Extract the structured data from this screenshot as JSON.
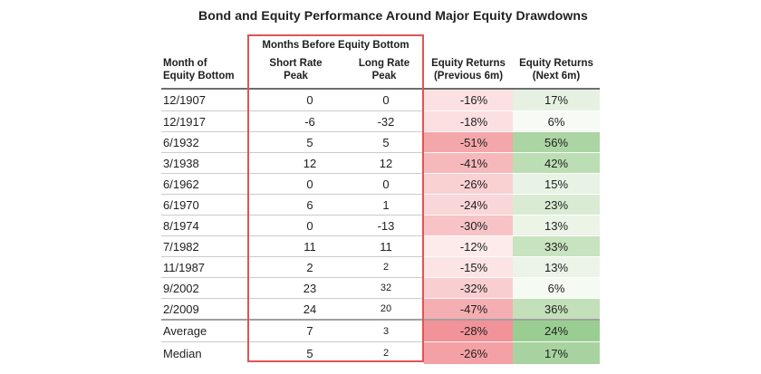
{
  "page": {
    "title": "Bond and Equity Performance Around Major Equity Drawdowns"
  },
  "table": {
    "headers": {
      "group": "Months Before Equity Bottom",
      "month_line1": "Month of",
      "month_line2": "Equity Bottom",
      "short_line1": "Short Rate",
      "short_line2": "Peak",
      "long_line1": "Long Rate",
      "long_line2": "Peak",
      "prev_line1": "Equity Returns",
      "prev_line2": "(Previous 6m)",
      "next_line1": "Equity Returns",
      "next_line2": "(Next 6m)"
    },
    "colors": {
      "box_border": "#e15454",
      "header_rule": "#6e6e6e",
      "row_divider": "#cbcbcb",
      "summary_divider": "#a0a0a0",
      "text": "#1f1f1f",
      "background": "#ffffff"
    },
    "rows": [
      {
        "month": "12/1907",
        "short_rate_peak": "0",
        "long_rate_peak": "0",
        "equity_returns_prev_6m": "-16%",
        "equity_returns_next_6m": "17%",
        "prev_bg": "#fbe1e3",
        "next_bg": "#e6f1e2",
        "long_small": false,
        "summary": false
      },
      {
        "month": "12/1917",
        "short_rate_peak": "-6",
        "long_rate_peak": "-32",
        "equity_returns_prev_6m": "-18%",
        "equity_returns_next_6m": "6%",
        "prev_bg": "#fbdfe1",
        "next_bg": "#f7faf5",
        "long_small": false,
        "summary": false
      },
      {
        "month": "6/1932",
        "short_rate_peak": "5",
        "long_rate_peak": "5",
        "equity_returns_prev_6m": "-51%",
        "equity_returns_next_6m": "56%",
        "prev_bg": "#f4a7ab",
        "next_bg": "#abd5a3",
        "long_small": false,
        "summary": false
      },
      {
        "month": "3/1938",
        "short_rate_peak": "12",
        "long_rate_peak": "12",
        "equity_returns_prev_6m": "-41%",
        "equity_returns_next_6m": "42%",
        "prev_bg": "#f6b8bb",
        "next_bg": "#bcdeb4",
        "long_small": false,
        "summary": false
      },
      {
        "month": "6/1962",
        "short_rate_peak": "0",
        "long_rate_peak": "0",
        "equity_returns_prev_6m": "-26%",
        "equity_returns_next_6m": "15%",
        "prev_bg": "#f9d1d3",
        "next_bg": "#e8f2e5",
        "long_small": false,
        "summary": false
      },
      {
        "month": "6/1970",
        "short_rate_peak": "6",
        "long_rate_peak": "1",
        "equity_returns_prev_6m": "-24%",
        "equity_returns_next_6m": "23%",
        "prev_bg": "#f9d6d8",
        "next_bg": "#d9ecd3",
        "long_small": false,
        "summary": false
      },
      {
        "month": "8/1974",
        "short_rate_peak": "0",
        "long_rate_peak": "-13",
        "equity_returns_prev_6m": "-30%",
        "equity_returns_next_6m": "13%",
        "prev_bg": "#f7c3c6",
        "next_bg": "#ebf4e7",
        "long_small": false,
        "summary": false
      },
      {
        "month": "7/1982",
        "short_rate_peak": "11",
        "long_rate_peak": "11",
        "equity_returns_prev_6m": "-12%",
        "equity_returns_next_6m": "33%",
        "prev_bg": "#fdebec",
        "next_bg": "#c7e3bf",
        "long_small": false,
        "summary": false
      },
      {
        "month": "11/1987",
        "short_rate_peak": "2",
        "long_rate_peak": "2",
        "equity_returns_prev_6m": "-15%",
        "equity_returns_next_6m": "13%",
        "prev_bg": "#fce4e5",
        "next_bg": "#ebf4e7",
        "long_small": true,
        "summary": false
      },
      {
        "month": "9/2002",
        "short_rate_peak": "23",
        "long_rate_peak": "32",
        "equity_returns_prev_6m": "-32%",
        "equity_returns_next_6m": "6%",
        "prev_bg": "#f8ced1",
        "next_bg": "#f5faf3",
        "long_small": true,
        "summary": false
      },
      {
        "month": "2/2009",
        "short_rate_peak": "24",
        "long_rate_peak": "20",
        "equity_returns_prev_6m": "-47%",
        "equity_returns_next_6m": "36%",
        "prev_bg": "#f5aeb2",
        "next_bg": "#c3e0ba",
        "long_small": true,
        "summary": false
      },
      {
        "month": "Average",
        "short_rate_peak": "7",
        "long_rate_peak": "3",
        "equity_returns_prev_6m": "-28%",
        "equity_returns_next_6m": "24%",
        "prev_bg": "#f29299",
        "next_bg": "#9acd92",
        "long_small": true,
        "summary": true
      },
      {
        "month": "Median",
        "short_rate_peak": "5",
        "long_rate_peak": "2",
        "equity_returns_prev_6m": "-26%",
        "equity_returns_next_6m": "17%",
        "prev_bg": "#f4a1a6",
        "next_bg": "#a8d3a0",
        "long_small": true,
        "summary": true
      }
    ]
  },
  "chart_data": {
    "type": "table",
    "title": "Bond and Equity Performance Around Major Equity Drawdowns",
    "column_group": {
      "label": "Months Before Equity Bottom",
      "spans": [
        "Short Rate Peak",
        "Long Rate Peak"
      ]
    },
    "columns": [
      "Month of Equity Bottom",
      "Short Rate Peak",
      "Long Rate Peak",
      "Equity Returns (Previous 6m)",
      "Equity Returns (Next 6m)"
    ],
    "units": {
      "short_rate_peak": "months",
      "long_rate_peak": "months",
      "equity_returns": "percent"
    },
    "rows": [
      [
        "12/1907",
        0,
        0,
        -16,
        17
      ],
      [
        "12/1917",
        -6,
        -32,
        -18,
        6
      ],
      [
        "6/1932",
        5,
        5,
        -51,
        56
      ],
      [
        "3/1938",
        12,
        12,
        -41,
        42
      ],
      [
        "6/1962",
        0,
        0,
        -26,
        15
      ],
      [
        "6/1970",
        6,
        1,
        -24,
        23
      ],
      [
        "8/1974",
        0,
        -13,
        -30,
        13
      ],
      [
        "7/1982",
        11,
        11,
        -12,
        33
      ],
      [
        "11/1987",
        2,
        2,
        -15,
        13
      ],
      [
        "9/2002",
        23,
        32,
        -32,
        6
      ],
      [
        "2/2009",
        24,
        20,
        -47,
        36
      ],
      [
        "Average",
        7,
        3,
        -28,
        24
      ],
      [
        "Median",
        5,
        2,
        -26,
        17
      ]
    ],
    "layout_hints": {
      "highlight_box_columns": [
        "Short Rate Peak",
        "Long Rate Peak"
      ],
      "heatmap_columns": {
        "Equity Returns (Previous 6m)": "red-scale",
        "Equity Returns (Next 6m)": "green-scale"
      },
      "summary_rows": [
        "Average",
        "Median"
      ]
    }
  }
}
